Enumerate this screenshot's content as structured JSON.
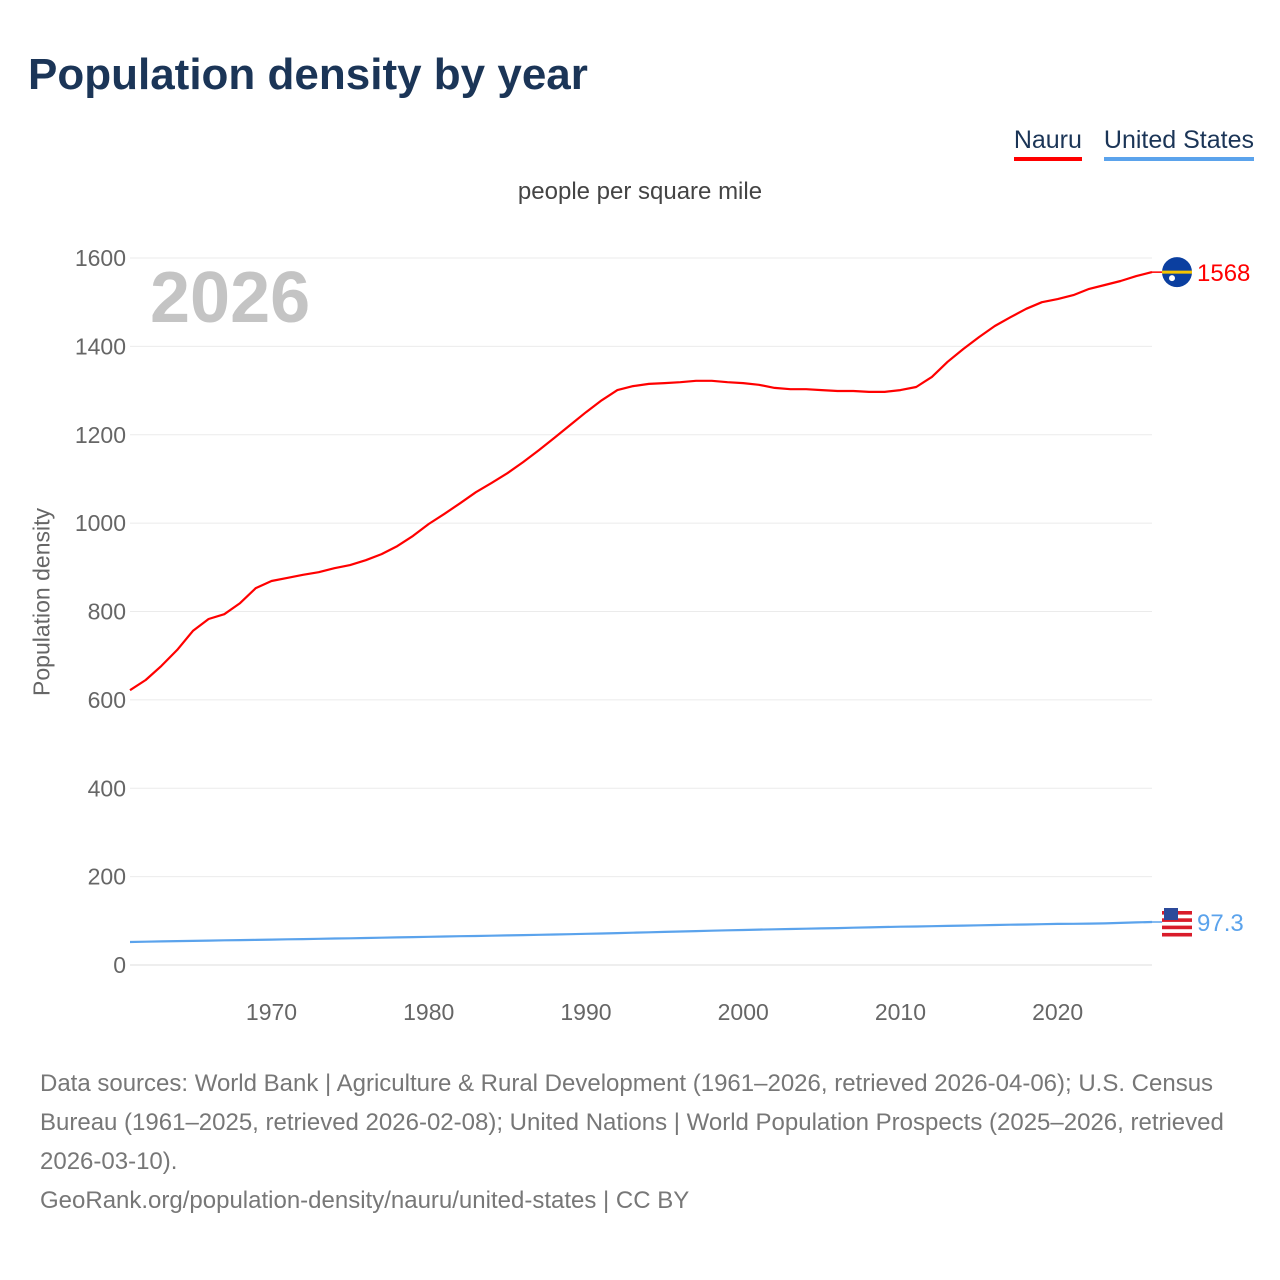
{
  "title": "Population density by year",
  "legend": [
    {
      "label": "Nauru",
      "color": "#ff0000"
    },
    {
      "label": "United States",
      "color": "#5ba3ec"
    }
  ],
  "footer": {
    "sources": "Data sources: World Bank | Agriculture & Rural Development (1961–2026, retrieved 2026-04-06); U.S. Census Bureau (1961–2025, retrieved 2026-02-08); United Nations | World Population Prospects (2025–2026, retrieved 2026-03-10).",
    "link": "GeoRank.org/population-density/nauru/united-states | CC BY"
  },
  "chart_data": {
    "type": "line",
    "title": "Population density by year",
    "subtitle": "people per square mile",
    "year_label": "2026",
    "xlabel": "",
    "ylabel": "Population density",
    "xlim": [
      1961,
      2026
    ],
    "ylim": [
      0,
      1600
    ],
    "x_ticks": [
      1970,
      1980,
      1990,
      2000,
      2010,
      2020
    ],
    "y_ticks": [
      0,
      200,
      400,
      600,
      800,
      1000,
      1200,
      1400,
      1600
    ],
    "grid": true,
    "legend_position": "top-right",
    "x": [
      1961,
      1962,
      1963,
      1964,
      1965,
      1966,
      1967,
      1968,
      1969,
      1970,
      1971,
      1972,
      1973,
      1974,
      1975,
      1976,
      1977,
      1978,
      1979,
      1980,
      1981,
      1982,
      1983,
      1984,
      1985,
      1986,
      1987,
      1988,
      1989,
      1990,
      1991,
      1992,
      1993,
      1994,
      1995,
      1996,
      1997,
      1998,
      1999,
      2000,
      2001,
      2002,
      2003,
      2004,
      2005,
      2006,
      2007,
      2008,
      2009,
      2010,
      2011,
      2012,
      2013,
      2014,
      2015,
      2016,
      2017,
      2018,
      2019,
      2020,
      2021,
      2022,
      2023,
      2024,
      2025,
      2026
    ],
    "series": [
      {
        "name": "Nauru",
        "color": "#ff0000",
        "end_label": "1568",
        "flag": "nauru-flag",
        "values": [
          622,
          645,
          677,
          713,
          756,
          783,
          794,
          819,
          853,
          869,
          876,
          883,
          889,
          898,
          905,
          916,
          930,
          948,
          971,
          998,
          1021,
          1045,
          1070,
          1091,
          1113,
          1138,
          1165,
          1193,
          1222,
          1251,
          1278,
          1301,
          1310,
          1315,
          1317,
          1319,
          1322,
          1322,
          1319,
          1317,
          1313,
          1306,
          1303,
          1303,
          1301,
          1299,
          1299,
          1297,
          1297,
          1301,
          1308,
          1331,
          1365,
          1394,
          1421,
          1446,
          1466,
          1485,
          1500,
          1507,
          1516,
          1530,
          1539,
          1548,
          1559,
          1568
        ]
      },
      {
        "name": "United States",
        "color": "#5ba3ec",
        "end_label": "97.3",
        "flag": "us-flag",
        "values": [
          52,
          52.7,
          53.3,
          54,
          54.6,
          55.2,
          55.8,
          56.3,
          56.9,
          57.5,
          58.1,
          58.7,
          59.3,
          59.9,
          60.5,
          61.1,
          61.7,
          62.4,
          63.1,
          63.8,
          64.4,
          65.1,
          65.7,
          66.3,
          66.9,
          67.6,
          68.3,
          69,
          69.7,
          70.5,
          71.3,
          72.2,
          73.1,
          74,
          74.9,
          75.8,
          76.7,
          77.6,
          78.5,
          79.3,
          80.1,
          80.8,
          81.5,
          82.2,
          82.9,
          83.6,
          84.4,
          85.2,
          85.9,
          86.6,
          87.2,
          87.9,
          88.5,
          89.1,
          89.8,
          90.5,
          91.1,
          91.7,
          92.3,
          92.9,
          93.2,
          93.6,
          94.2,
          95.2,
          96.4,
          97.3
        ]
      }
    ]
  }
}
